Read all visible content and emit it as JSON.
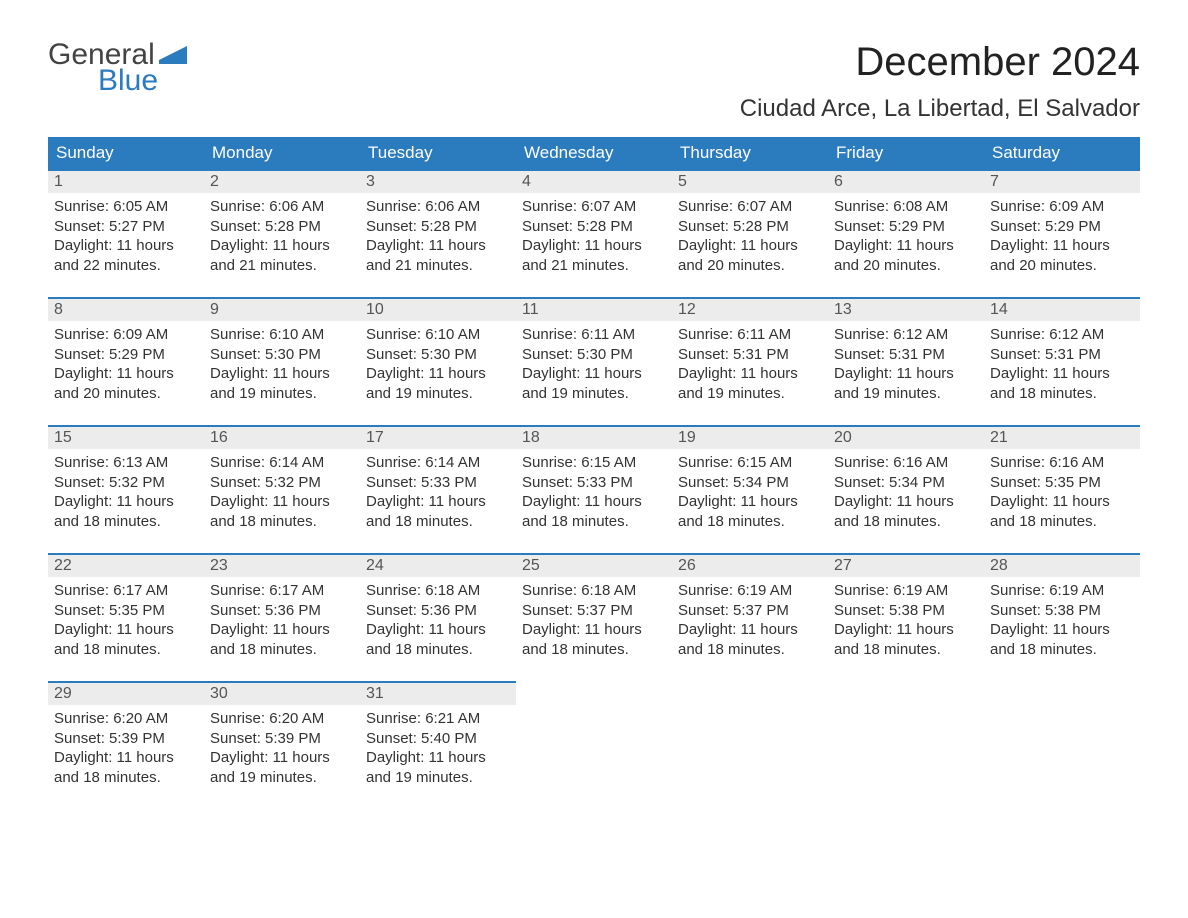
{
  "logo": {
    "text_top": "General",
    "text_bottom": "Blue",
    "top_color": "#444444",
    "bottom_color": "#2b7bbf",
    "flag_color": "#2b7bbf"
  },
  "header": {
    "month_title": "December 2024",
    "location": "Ciudad Arce, La Libertad, El Salvador"
  },
  "styling": {
    "header_bg": "#2b7bbf",
    "header_text": "#ffffff",
    "daynum_bg": "#ececec",
    "daynum_border": "#2b7bbf",
    "body_bg": "#ffffff",
    "text_color": "#333333",
    "font_family": "Arial",
    "month_title_fontsize": 40,
    "location_fontsize": 24,
    "dayheader_fontsize": 17,
    "daynum_fontsize": 16,
    "body_fontsize": 15
  },
  "weekdays": [
    "Sunday",
    "Monday",
    "Tuesday",
    "Wednesday",
    "Thursday",
    "Friday",
    "Saturday"
  ],
  "weeks": [
    [
      {
        "n": "1",
        "sunrise": "6:05 AM",
        "sunset": "5:27 PM",
        "daylight": "11 hours and 22 minutes."
      },
      {
        "n": "2",
        "sunrise": "6:06 AM",
        "sunset": "5:28 PM",
        "daylight": "11 hours and 21 minutes."
      },
      {
        "n": "3",
        "sunrise": "6:06 AM",
        "sunset": "5:28 PM",
        "daylight": "11 hours and 21 minutes."
      },
      {
        "n": "4",
        "sunrise": "6:07 AM",
        "sunset": "5:28 PM",
        "daylight": "11 hours and 21 minutes."
      },
      {
        "n": "5",
        "sunrise": "6:07 AM",
        "sunset": "5:28 PM",
        "daylight": "11 hours and 20 minutes."
      },
      {
        "n": "6",
        "sunrise": "6:08 AM",
        "sunset": "5:29 PM",
        "daylight": "11 hours and 20 minutes."
      },
      {
        "n": "7",
        "sunrise": "6:09 AM",
        "sunset": "5:29 PM",
        "daylight": "11 hours and 20 minutes."
      }
    ],
    [
      {
        "n": "8",
        "sunrise": "6:09 AM",
        "sunset": "5:29 PM",
        "daylight": "11 hours and 20 minutes."
      },
      {
        "n": "9",
        "sunrise": "6:10 AM",
        "sunset": "5:30 PM",
        "daylight": "11 hours and 19 minutes."
      },
      {
        "n": "10",
        "sunrise": "6:10 AM",
        "sunset": "5:30 PM",
        "daylight": "11 hours and 19 minutes."
      },
      {
        "n": "11",
        "sunrise": "6:11 AM",
        "sunset": "5:30 PM",
        "daylight": "11 hours and 19 minutes."
      },
      {
        "n": "12",
        "sunrise": "6:11 AM",
        "sunset": "5:31 PM",
        "daylight": "11 hours and 19 minutes."
      },
      {
        "n": "13",
        "sunrise": "6:12 AM",
        "sunset": "5:31 PM",
        "daylight": "11 hours and 19 minutes."
      },
      {
        "n": "14",
        "sunrise": "6:12 AM",
        "sunset": "5:31 PM",
        "daylight": "11 hours and 18 minutes."
      }
    ],
    [
      {
        "n": "15",
        "sunrise": "6:13 AM",
        "sunset": "5:32 PM",
        "daylight": "11 hours and 18 minutes."
      },
      {
        "n": "16",
        "sunrise": "6:14 AM",
        "sunset": "5:32 PM",
        "daylight": "11 hours and 18 minutes."
      },
      {
        "n": "17",
        "sunrise": "6:14 AM",
        "sunset": "5:33 PM",
        "daylight": "11 hours and 18 minutes."
      },
      {
        "n": "18",
        "sunrise": "6:15 AM",
        "sunset": "5:33 PM",
        "daylight": "11 hours and 18 minutes."
      },
      {
        "n": "19",
        "sunrise": "6:15 AM",
        "sunset": "5:34 PM",
        "daylight": "11 hours and 18 minutes."
      },
      {
        "n": "20",
        "sunrise": "6:16 AM",
        "sunset": "5:34 PM",
        "daylight": "11 hours and 18 minutes."
      },
      {
        "n": "21",
        "sunrise": "6:16 AM",
        "sunset": "5:35 PM",
        "daylight": "11 hours and 18 minutes."
      }
    ],
    [
      {
        "n": "22",
        "sunrise": "6:17 AM",
        "sunset": "5:35 PM",
        "daylight": "11 hours and 18 minutes."
      },
      {
        "n": "23",
        "sunrise": "6:17 AM",
        "sunset": "5:36 PM",
        "daylight": "11 hours and 18 minutes."
      },
      {
        "n": "24",
        "sunrise": "6:18 AM",
        "sunset": "5:36 PM",
        "daylight": "11 hours and 18 minutes."
      },
      {
        "n": "25",
        "sunrise": "6:18 AM",
        "sunset": "5:37 PM",
        "daylight": "11 hours and 18 minutes."
      },
      {
        "n": "26",
        "sunrise": "6:19 AM",
        "sunset": "5:37 PM",
        "daylight": "11 hours and 18 minutes."
      },
      {
        "n": "27",
        "sunrise": "6:19 AM",
        "sunset": "5:38 PM",
        "daylight": "11 hours and 18 minutes."
      },
      {
        "n": "28",
        "sunrise": "6:19 AM",
        "sunset": "5:38 PM",
        "daylight": "11 hours and 18 minutes."
      }
    ],
    [
      {
        "n": "29",
        "sunrise": "6:20 AM",
        "sunset": "5:39 PM",
        "daylight": "11 hours and 18 minutes."
      },
      {
        "n": "30",
        "sunrise": "6:20 AM",
        "sunset": "5:39 PM",
        "daylight": "11 hours and 19 minutes."
      },
      {
        "n": "31",
        "sunrise": "6:21 AM",
        "sunset": "5:40 PM",
        "daylight": "11 hours and 19 minutes."
      },
      null,
      null,
      null,
      null
    ]
  ],
  "labels": {
    "sunrise_prefix": "Sunrise: ",
    "sunset_prefix": "Sunset: ",
    "daylight_prefix": "Daylight: "
  }
}
